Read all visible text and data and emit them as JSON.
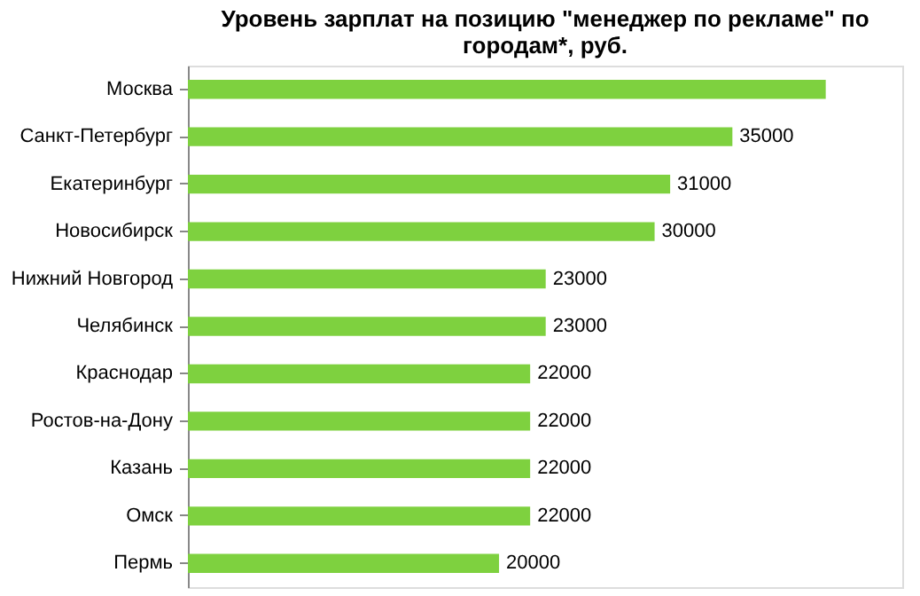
{
  "chart_data": {
    "type": "bar",
    "orientation": "horizontal",
    "title": "Уровень зарплат на позицию \"менеджер по рекламе\" по городам*, руб.",
    "categories": [
      "Москва",
      "Санкт-Петербург",
      "Екатеринбург",
      "Новосибирск",
      "Нижний Новгород",
      "Челябинск",
      "Краснодар",
      "Ростов-на-Дону",
      "Казань",
      "Омск",
      "Пермь"
    ],
    "values": [
      41000,
      35000,
      31000,
      30000,
      23000,
      23000,
      22000,
      22000,
      22000,
      22000,
      20000
    ],
    "value_labels": [
      null,
      "35000",
      "31000",
      "30000",
      "23000",
      "23000",
      "22000",
      "22000",
      "22000",
      "22000",
      "20000"
    ],
    "color": "#7ed13f"
  }
}
